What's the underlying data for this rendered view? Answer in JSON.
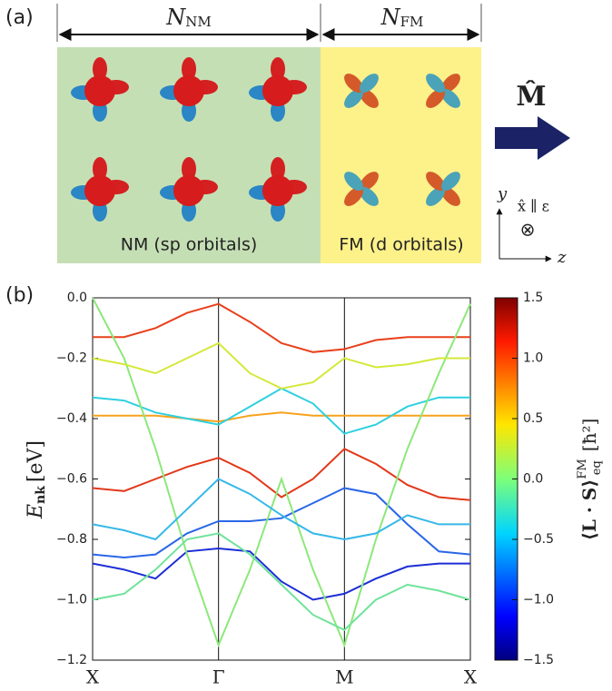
{
  "panel_a": {
    "label": "(a)",
    "n_nm": {
      "symbol": "N",
      "subscript": "NM"
    },
    "n_fm": {
      "symbol": "N",
      "subscript": "FM"
    },
    "nm_text": "NM (sp orbitals)",
    "fm_text": "FM (d orbitals)",
    "magnetization": "M̂",
    "axis_y": "y",
    "axis_z": "z",
    "field": "x̂ ∥ ε",
    "into_page": "⊗"
  },
  "chart_data": {
    "type": "line",
    "panel_label": "(b)",
    "y_label": {
      "symbol": "E",
      "subscript": "nk",
      "unit": "[eV]"
    },
    "x": [
      0,
      0.25,
      0.5,
      0.75,
      1,
      1.25,
      1.5,
      1.75,
      2,
      2.25,
      2.5,
      2.75,
      3
    ],
    "xlim": [
      0,
      3
    ],
    "xticks": [
      {
        "value": 0,
        "label": "X"
      },
      {
        "value": 1,
        "label": "Γ"
      },
      {
        "value": 2,
        "label": "M"
      },
      {
        "value": 3,
        "label": "X"
      }
    ],
    "ylim": [
      -1.2,
      0
    ],
    "yticks": [
      {
        "value": -1.2,
        "label": "−1.2"
      },
      {
        "value": -1.0,
        "label": "−1.0"
      },
      {
        "value": -0.8,
        "label": "−0.8"
      },
      {
        "value": -0.6,
        "label": "−0.6"
      },
      {
        "value": -0.4,
        "label": "−0.4"
      },
      {
        "value": -0.2,
        "label": "−0.2"
      },
      {
        "value": 0,
        "label": "0.0"
      }
    ],
    "series": [
      {
        "color": "#e8401c",
        "values": [
          -0.13,
          -0.13,
          -0.1,
          -0.05,
          -0.02,
          -0.08,
          -0.15,
          -0.18,
          -0.17,
          -0.14,
          -0.13,
          -0.13,
          -0.13
        ]
      },
      {
        "color": "#e2381a",
        "values": [
          -0.63,
          -0.64,
          -0.6,
          -0.56,
          -0.53,
          -0.58,
          -0.66,
          -0.6,
          -0.5,
          -0.55,
          -0.62,
          -0.66,
          -0.67
        ]
      },
      {
        "color": "#f7a21c",
        "values": [
          -0.39,
          -0.39,
          -0.39,
          -0.4,
          -0.41,
          -0.39,
          -0.38,
          -0.39,
          -0.39,
          -0.39,
          -0.39,
          -0.39,
          -0.39
        ]
      },
      {
        "color": "#1c2ed6",
        "values": [
          -0.88,
          -0.9,
          -0.93,
          -0.84,
          -0.83,
          -0.84,
          -0.94,
          -1.0,
          -0.98,
          -0.93,
          -0.89,
          -0.88,
          -0.88
        ]
      },
      {
        "color": "#2a66e8",
        "values": [
          -0.85,
          -0.86,
          -0.85,
          -0.78,
          -0.74,
          -0.74,
          -0.73,
          -0.68,
          -0.63,
          -0.65,
          -0.75,
          -0.84,
          -0.85
        ]
      },
      {
        "color": "#2ed0e0",
        "values": [
          -0.33,
          -0.34,
          -0.38,
          -0.4,
          -0.42,
          -0.36,
          -0.3,
          -0.35,
          -0.45,
          -0.42,
          -0.36,
          -0.33,
          -0.33
        ]
      },
      {
        "color": "#8ce87a",
        "values": [
          0,
          -0.2,
          -0.5,
          -0.85,
          -1.15,
          -0.9,
          -0.6,
          -0.9,
          -1.15,
          -0.8,
          -0.5,
          -0.25,
          -0.02
        ]
      },
      {
        "color": "#d4e83a",
        "values": [
          -0.2,
          -0.22,
          -0.25,
          -0.2,
          -0.15,
          -0.25,
          -0.3,
          -0.28,
          -0.2,
          -0.23,
          -0.22,
          -0.2,
          -0.2
        ]
      },
      {
        "color": "#6fe39a",
        "values": [
          -1.0,
          -0.98,
          -0.9,
          -0.8,
          -0.78,
          -0.85,
          -0.95,
          -1.05,
          -1.1,
          -1.0,
          -0.95,
          -0.97,
          -1.0
        ]
      },
      {
        "color": "#36b8e8",
        "values": [
          -0.75,
          -0.77,
          -0.8,
          -0.7,
          -0.6,
          -0.65,
          -0.72,
          -0.78,
          -0.8,
          -0.78,
          -0.72,
          -0.75,
          -0.75
        ]
      }
    ],
    "colorbar": {
      "lim": [
        -1.5,
        1.5
      ],
      "ticks": [
        {
          "value": 1.5,
          "label": "1.5"
        },
        {
          "value": 1.0,
          "label": "1.0"
        },
        {
          "value": 0.5,
          "label": "0.5"
        },
        {
          "value": 0,
          "label": "0.0"
        },
        {
          "value": -0.5,
          "label": "−0.5"
        },
        {
          "value": -1.0,
          "label": "−1.0"
        },
        {
          "value": -1.5,
          "label": "−1.5"
        }
      ],
      "label": {
        "main": "⟨L · S⟩",
        "sub": "eq",
        "sup": "FM",
        "unit": "[ħ²]"
      }
    }
  }
}
